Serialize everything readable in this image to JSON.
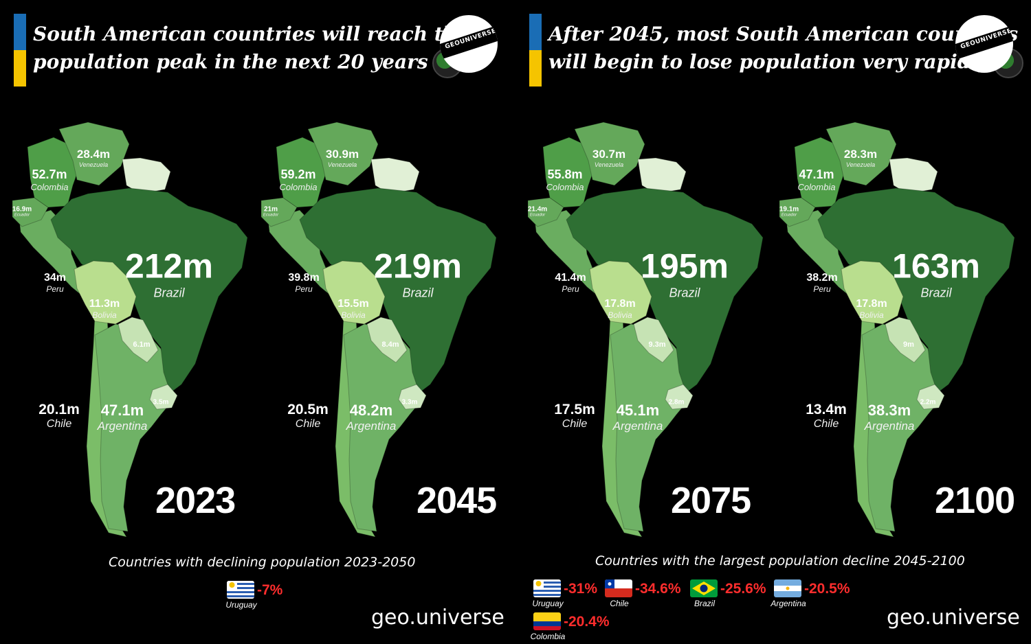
{
  "colors": {
    "flag_blue": "#1a6db5",
    "flag_yellow": "#f5c400",
    "brazil": "#2e6f33",
    "colombia": "#4f9e48",
    "venezuela": "#64a85a",
    "peru": "#6aad60",
    "argentina": "#6fb266",
    "chile": "#7bbd68",
    "bolivia": "#b9de8e",
    "paraguay": "#c6e3b4",
    "uruguay": "#cfe8c1",
    "guianas": "#e1f0d6",
    "decline_red": "#ff2d2d"
  },
  "left": {
    "headline_line1": "South American countries will reach their",
    "headline_line2": "population peak in the next 20 years",
    "logo_text": "GEOUNIVERSE",
    "maps": [
      {
        "year": "2023",
        "brazil": {
          "value": "212m",
          "name": "Brazil"
        },
        "colombia": {
          "value": "52.7m",
          "name": "Colombia"
        },
        "venezuela": {
          "value": "28.4m",
          "name": "Venezuela"
        },
        "ecuador": {
          "value": "16.9m",
          "name": "Ecuador"
        },
        "peru": {
          "value": "34m",
          "name": "Peru"
        },
        "bolivia": {
          "value": "11.3m",
          "name": "Bolivia"
        },
        "paraguay": {
          "value": "6.1m"
        },
        "uruguay": {
          "value": "3.5m"
        },
        "chile": {
          "value": "20.1m",
          "name": "Chile"
        },
        "argentina": {
          "value": "47.1m",
          "name": "Argentina"
        }
      },
      {
        "year": "2045",
        "brazil": {
          "value": "219m",
          "name": "Brazil"
        },
        "colombia": {
          "value": "59.2m",
          "name": "Colombia"
        },
        "venezuela": {
          "value": "30.9m",
          "name": "Venezuela"
        },
        "ecuador": {
          "value": "21m",
          "name": "Ecuador"
        },
        "peru": {
          "value": "39.8m",
          "name": "Peru"
        },
        "bolivia": {
          "value": "15.5m",
          "name": "Bolivia"
        },
        "paraguay": {
          "value": "8.4m"
        },
        "uruguay": {
          "value": "3.3m"
        },
        "chile": {
          "value": "20.5m",
          "name": "Chile"
        },
        "argentina": {
          "value": "48.2m",
          "name": "Argentina"
        }
      }
    ],
    "caption": "Countries with declining population 2023-2050",
    "declines": [
      {
        "country": "Uruguay",
        "pct": "-7%",
        "flag": "uruguay-flag"
      }
    ],
    "watermark": "geo.universe"
  },
  "right": {
    "headline_line1": "After 2045, most South American countries",
    "headline_line2": "will begin to lose population very rapidly",
    "logo_text": "GEOUNIVERSE",
    "maps": [
      {
        "year": "2075",
        "brazil": {
          "value": "195m",
          "name": "Brazil"
        },
        "colombia": {
          "value": "55.8m",
          "name": "Colombia"
        },
        "venezuela": {
          "value": "30.7m",
          "name": "Venezuela"
        },
        "ecuador": {
          "value": "21.4m",
          "name": "Ecuador"
        },
        "peru": {
          "value": "41.4m",
          "name": "Peru"
        },
        "bolivia": {
          "value": "17.8m",
          "name": "Bolivia"
        },
        "paraguay": {
          "value": "9.3m"
        },
        "uruguay": {
          "value": "2.8m"
        },
        "chile": {
          "value": "17.5m",
          "name": "Chile"
        },
        "argentina": {
          "value": "45.1m",
          "name": "Argentina"
        }
      },
      {
        "year": "2100",
        "brazil": {
          "value": "163m",
          "name": "Brazil"
        },
        "colombia": {
          "value": "47.1m",
          "name": "Colombia"
        },
        "venezuela": {
          "value": "28.3m",
          "name": "Venezuela"
        },
        "ecuador": {
          "value": "19.1m",
          "name": "Ecuador"
        },
        "peru": {
          "value": "38.2m",
          "name": "Peru"
        },
        "bolivia": {
          "value": "17.8m",
          "name": "Bolivia"
        },
        "paraguay": {
          "value": "9m"
        },
        "uruguay": {
          "value": "2.2m"
        },
        "chile": {
          "value": "13.4m",
          "name": "Chile"
        },
        "argentina": {
          "value": "38.3m",
          "name": "Argentina"
        }
      }
    ],
    "caption": "Countries with the largest population decline 2045-2100",
    "declines": [
      {
        "country": "Uruguay",
        "pct": "-31%",
        "flag": "uruguay-flag"
      },
      {
        "country": "Chile",
        "pct": "-34.6%",
        "flag": "chile-flag"
      },
      {
        "country": "Brazil",
        "pct": "-25.6%",
        "flag": "brazil-flag"
      },
      {
        "country": "Argentina",
        "pct": "-20.5%",
        "flag": "argentina-flag"
      },
      {
        "country": "Colombia",
        "pct": "-20.4%",
        "flag": "colombia-flag"
      }
    ],
    "watermark": "geo.universe"
  }
}
